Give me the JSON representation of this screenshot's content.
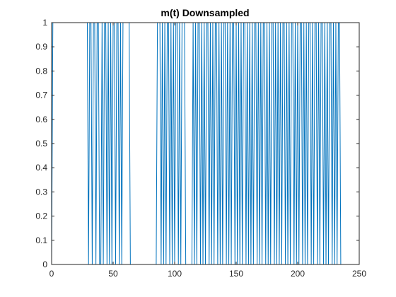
{
  "chart_data": {
    "type": "line",
    "title": "m(t) Downsampled",
    "xlabel": "",
    "ylabel": "",
    "xlim": [
      0,
      250
    ],
    "ylim": [
      0,
      1
    ],
    "xticks": [
      0,
      50,
      100,
      150,
      200,
      250
    ],
    "yticks": [
      0,
      0.1,
      0.2,
      0.3,
      0.4,
      0.5,
      0.6,
      0.7,
      0.8,
      0.9,
      1
    ],
    "xtick_labels": [
      "0",
      "50",
      "100",
      "150",
      "200",
      "250"
    ],
    "ytick_labels": [
      "0",
      "0.1",
      "0.2",
      "0.3",
      "0.4",
      "0.5",
      "0.6",
      "0.7",
      "0.8",
      "0.9",
      "1"
    ],
    "grid": false,
    "line_color": "#0072bd",
    "series": [
      {
        "values_by_index": [
          0,
          1,
          1,
          1,
          1,
          1,
          1,
          1,
          1,
          1,
          1,
          1,
          1,
          1,
          1,
          1,
          1,
          1,
          1,
          1,
          1,
          1,
          1,
          1,
          1,
          1,
          1,
          1,
          1,
          1,
          0,
          1,
          1,
          0,
          1,
          1,
          0,
          1,
          1,
          0,
          0,
          1,
          0,
          1,
          1,
          0,
          1,
          0,
          1,
          0,
          1,
          1,
          0,
          1,
          1,
          0,
          1,
          0,
          1,
          1,
          1,
          1,
          1,
          1,
          0,
          0,
          0,
          0,
          0,
          0,
          0,
          0,
          0,
          0,
          0,
          0,
          0,
          0,
          0,
          0,
          0,
          0,
          0,
          0,
          0,
          0,
          1,
          1,
          1,
          0,
          1,
          0,
          1,
          0,
          1,
          1,
          0,
          1,
          0,
          1,
          0,
          1,
          1,
          0,
          1,
          0,
          1,
          1,
          1,
          0,
          0,
          0,
          0,
          0,
          0,
          1,
          0,
          1,
          0,
          1,
          1,
          0,
          1,
          0,
          1,
          0,
          1,
          1,
          0,
          1,
          0,
          1,
          0,
          1,
          1,
          0,
          1,
          0,
          1,
          0,
          1,
          1,
          0,
          1,
          0,
          1,
          0,
          1,
          1,
          0,
          1,
          0,
          1,
          0,
          1,
          0,
          1,
          1,
          0,
          1,
          0,
          1,
          0,
          1,
          0,
          1,
          1,
          0,
          1,
          0,
          1,
          0,
          1,
          1,
          0,
          1,
          0,
          1,
          0,
          1,
          1,
          0,
          1,
          0,
          1,
          0,
          1,
          0,
          1,
          1,
          0,
          1,
          0,
          1,
          0,
          1,
          1,
          0,
          1,
          0,
          1,
          0,
          1,
          1,
          0,
          1,
          0,
          1,
          0,
          1,
          1,
          0,
          1,
          0,
          1,
          1,
          0,
          1,
          0,
          1,
          1,
          0,
          1,
          0,
          1,
          0,
          1,
          1,
          0,
          1,
          0,
          1,
          0,
          1,
          1,
          0
        ]
      }
    ]
  }
}
